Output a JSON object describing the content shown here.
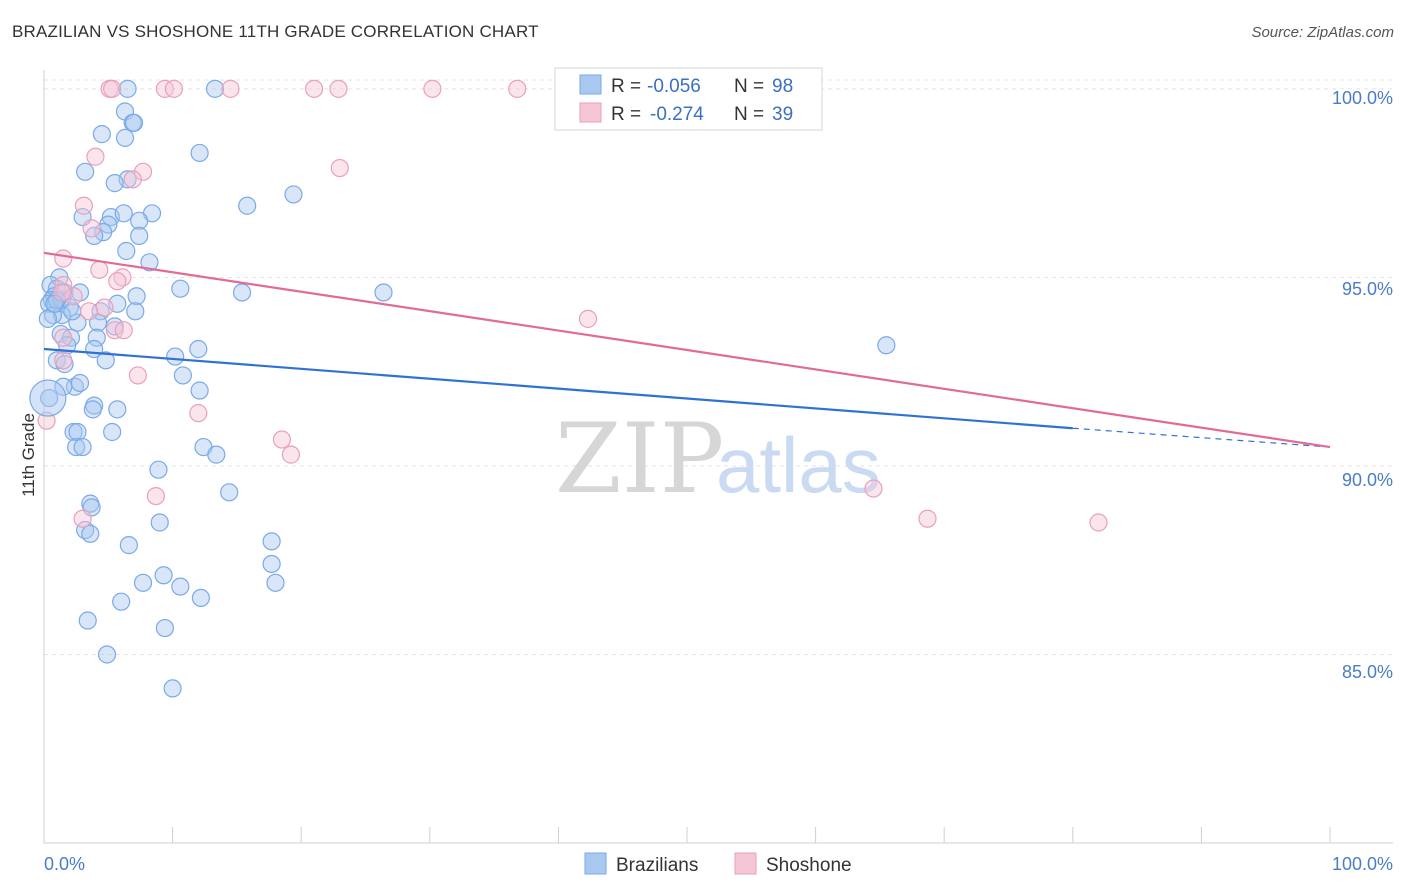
{
  "title": "BRAZILIAN VS SHOSHONE 11TH GRADE CORRELATION CHART",
  "source": "Source: ZipAtlas.com",
  "watermark": {
    "zip": "ZIP",
    "atlas": "atlas"
  },
  "chart_data": {
    "type": "scatter",
    "ylabel": "11th Grade",
    "xlabel": "",
    "xlim": [
      0,
      100
    ],
    "ylim": [
      80.0,
      100.5
    ],
    "x_tick_labels": {
      "left": "0.0%",
      "right": "100.0%"
    },
    "y_ticks": [
      {
        "value": 100,
        "label": "100.0%"
      },
      {
        "value": 95,
        "label": "95.0%"
      },
      {
        "value": 90,
        "label": "90.0%"
      },
      {
        "value": 85,
        "label": "85.0%"
      }
    ],
    "legend": {
      "entries": [
        {
          "r_label": "R =",
          "r_value": "-0.056",
          "n_label": "N =",
          "n_value": "98"
        },
        {
          "r_label": "R =",
          "r_value": "-0.274",
          "n_label": "N =",
          "n_value": "39"
        }
      ]
    },
    "series": [
      {
        "name": "Brazilians",
        "color": "#7aaae8",
        "fill": "#a9c8f0",
        "line_color": "#2f72d6",
        "trend": {
          "x0": 0,
          "y0": 93.1,
          "x1": 80,
          "y1": 91.0,
          "dash_to": 100,
          "dash_y": 90.5
        },
        "points": [
          [
            6.5,
            100
          ],
          [
            13.3,
            100
          ],
          [
            6.3,
            99.4
          ],
          [
            6.9,
            99.1
          ],
          [
            7.0,
            99.1
          ],
          [
            4.5,
            98.8
          ],
          [
            6.3,
            98.7
          ],
          [
            12.1,
            98.3
          ],
          [
            3.2,
            97.8
          ],
          [
            6.5,
            97.6
          ],
          [
            5.5,
            97.5
          ],
          [
            19.4,
            97.2
          ],
          [
            15.8,
            96.9
          ],
          [
            8.4,
            96.7
          ],
          [
            5.2,
            96.6
          ],
          [
            3.0,
            96.6
          ],
          [
            6.2,
            96.7
          ],
          [
            7.4,
            96.5
          ],
          [
            5.0,
            96.4
          ],
          [
            4.6,
            96.2
          ],
          [
            3.9,
            96.1
          ],
          [
            7.4,
            96.1
          ],
          [
            6.4,
            95.7
          ],
          [
            8.2,
            95.4
          ],
          [
            1.2,
            95.0
          ],
          [
            0.5,
            94.8
          ],
          [
            1.0,
            94.7
          ],
          [
            0.8,
            94.5
          ],
          [
            1.6,
            94.6
          ],
          [
            0.6,
            94.4
          ],
          [
            0.9,
            94.3
          ],
          [
            0.4,
            94.3
          ],
          [
            1.4,
            94.4
          ],
          [
            2.8,
            94.6
          ],
          [
            7.2,
            94.5
          ],
          [
            10.6,
            94.7
          ],
          [
            15.4,
            94.6
          ],
          [
            26.4,
            94.6
          ],
          [
            2.0,
            94.2
          ],
          [
            4.4,
            94.1
          ],
          [
            5.7,
            94.3
          ],
          [
            7.1,
            94.1
          ],
          [
            1.4,
            94.0
          ],
          [
            0.7,
            94.0
          ],
          [
            2.6,
            93.8
          ],
          [
            4.2,
            93.8
          ],
          [
            5.5,
            93.7
          ],
          [
            1.3,
            93.5
          ],
          [
            2.1,
            93.4
          ],
          [
            4.1,
            93.4
          ],
          [
            1.8,
            93.2
          ],
          [
            3.9,
            93.1
          ],
          [
            10.2,
            92.9
          ],
          [
            12.0,
            93.1
          ],
          [
            65.5,
            93.2
          ],
          [
            1.0,
            92.8
          ],
          [
            4.8,
            92.8
          ],
          [
            1.6,
            92.7
          ],
          [
            10.8,
            92.4
          ],
          [
            2.4,
            92.1
          ],
          [
            1.5,
            92.1
          ],
          [
            2.8,
            92.2
          ],
          [
            0.4,
            91.8
          ],
          [
            12.1,
            92.0
          ],
          [
            3.9,
            91.6
          ],
          [
            5.7,
            91.5
          ],
          [
            3.8,
            91.5
          ],
          [
            2.3,
            90.9
          ],
          [
            5.3,
            90.9
          ],
          [
            2.6,
            90.9
          ],
          [
            2.5,
            90.5
          ],
          [
            3.0,
            90.5
          ],
          [
            12.4,
            90.5
          ],
          [
            13.4,
            90.3
          ],
          [
            8.9,
            89.9
          ],
          [
            14.4,
            89.3
          ],
          [
            3.6,
            89.0
          ],
          [
            3.7,
            88.9
          ],
          [
            9.0,
            88.5
          ],
          [
            17.7,
            88.0
          ],
          [
            3.2,
            88.3
          ],
          [
            3.6,
            88.2
          ],
          [
            6.6,
            87.9
          ],
          [
            17.7,
            87.4
          ],
          [
            9.3,
            87.1
          ],
          [
            7.7,
            86.9
          ],
          [
            10.6,
            86.8
          ],
          [
            18.0,
            86.9
          ],
          [
            12.2,
            86.5
          ],
          [
            6.0,
            86.4
          ],
          [
            3.4,
            85.9
          ],
          [
            9.4,
            85.7
          ],
          [
            4.9,
            85.0
          ],
          [
            10.0,
            84.1
          ],
          [
            0.3,
            93.9
          ],
          [
            2.2,
            94.1
          ],
          [
            1.0,
            94.4
          ],
          [
            0.8,
            94.3
          ]
        ]
      },
      {
        "name": "Shoshone",
        "color": "#e8a0bc",
        "fill": "#f5c6d6",
        "line_color": "#e06b97",
        "trend": {
          "x0": 0,
          "y0": 95.65,
          "x1": 100,
          "y1": 90.5
        },
        "points": [
          [
            5.1,
            100
          ],
          [
            5.3,
            100
          ],
          [
            9.4,
            100
          ],
          [
            10.1,
            100
          ],
          [
            14.5,
            100
          ],
          [
            21.0,
            100
          ],
          [
            22.9,
            100
          ],
          [
            30.2,
            100
          ],
          [
            36.8,
            100
          ],
          [
            4.0,
            98.2
          ],
          [
            7.7,
            97.8
          ],
          [
            23.0,
            97.9
          ],
          [
            6.9,
            97.6
          ],
          [
            3.1,
            96.9
          ],
          [
            3.7,
            96.3
          ],
          [
            1.5,
            95.5
          ],
          [
            4.3,
            95.2
          ],
          [
            6.1,
            95.0
          ],
          [
            5.7,
            94.9
          ],
          [
            1.5,
            94.8
          ],
          [
            2.3,
            94.5
          ],
          [
            1.4,
            94.6
          ],
          [
            4.7,
            94.2
          ],
          [
            3.5,
            94.1
          ],
          [
            5.5,
            93.6
          ],
          [
            6.2,
            93.6
          ],
          [
            1.5,
            93.4
          ],
          [
            42.3,
            93.9
          ],
          [
            1.5,
            92.8
          ],
          [
            7.3,
            92.4
          ],
          [
            12.0,
            91.4
          ],
          [
            18.5,
            90.7
          ],
          [
            19.2,
            90.3
          ],
          [
            8.7,
            89.2
          ],
          [
            64.5,
            89.4
          ],
          [
            3.0,
            88.6
          ],
          [
            68.7,
            88.6
          ],
          [
            82.0,
            88.5
          ],
          [
            0.2,
            91.2
          ]
        ]
      }
    ]
  },
  "bottom_legend": [
    "Brazilians",
    "Shoshone"
  ]
}
